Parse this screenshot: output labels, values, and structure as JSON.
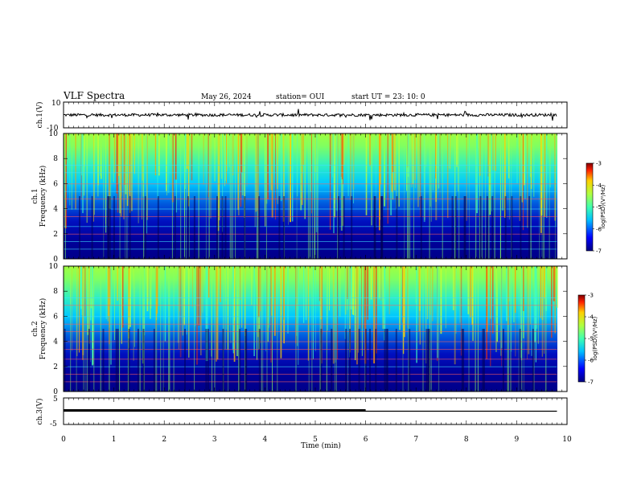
{
  "header": {
    "title": "VLF Spectra",
    "date": "May 26, 2024",
    "station": "station= OUI",
    "start": "start  UT =   23: 10: 0"
  },
  "chart_data": [
    {
      "type": "line",
      "panel": "ch1-waveform",
      "ylabel": "ch.1(V)",
      "ylim": [
        -10,
        10
      ],
      "yticks": [
        "10",
        "-10"
      ],
      "xlim": [
        0,
        9.8
      ],
      "baseline": 0,
      "color": "#000000"
    },
    {
      "type": "heatmap",
      "panel": "ch1-spectrogram",
      "ylabel": "ch.1 Frequency (kHz)",
      "ylim": [
        0,
        10
      ],
      "yticks": [
        "0",
        "2",
        "4",
        "6",
        "8",
        "10"
      ],
      "xlim": [
        0,
        9.8
      ],
      "colorbar": {
        "label": "log(PSD)(V²/Hz)",
        "range": [
          -7,
          -3
        ],
        "ticks": [
          "-3",
          "-4",
          "-5",
          "-6",
          "-7"
        ]
      }
    },
    {
      "type": "heatmap",
      "panel": "ch2-spectrogram",
      "ylabel": "ch.2 Frequency (kHz)",
      "ylim": [
        0,
        10
      ],
      "yticks": [
        "0",
        "2",
        "4",
        "6",
        "8",
        "10"
      ],
      "xlim": [
        0,
        9.8
      ],
      "colorbar": {
        "label": "log(PSD)(V²/Hz)",
        "range": [
          -7,
          -3
        ],
        "ticks": [
          "-3",
          "-4",
          "-5",
          "-6",
          "-7"
        ]
      }
    },
    {
      "type": "line",
      "panel": "ch3-waveform",
      "ylabel": "ch.3(V)",
      "ylim": [
        -5,
        5
      ],
      "yticks": [
        "5",
        "-5"
      ],
      "xlim": [
        0,
        9.8
      ],
      "series": [
        {
          "x": [
            0,
            6
          ],
          "y": [
            0.3,
            0.3
          ]
        },
        {
          "x": [
            0,
            9.8
          ],
          "y": [
            0,
            0
          ]
        }
      ]
    }
  ],
  "xaxis": {
    "label": "Time  (min)",
    "ticks": [
      "0",
      "1",
      "2",
      "3",
      "4",
      "5",
      "6",
      "7",
      "8",
      "9",
      "10"
    ],
    "range": [
      0,
      10
    ]
  }
}
